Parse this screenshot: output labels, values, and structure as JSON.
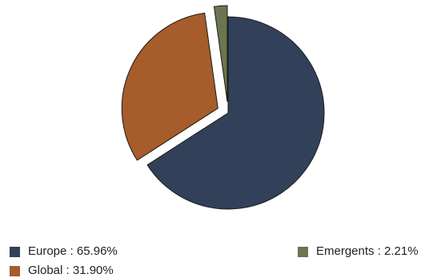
{
  "chart_data": {
    "type": "pie",
    "slices": [
      {
        "label": "Europe",
        "value": 65.96,
        "color": "#334059",
        "exploded": false
      },
      {
        "label": "Global",
        "value": 31.9,
        "color": "#a65c2b",
        "exploded": true
      },
      {
        "label": "Emergents",
        "value": 2.21,
        "color": "#6b7550",
        "exploded": true
      }
    ],
    "legend": {
      "placement": "bottom",
      "items": [
        "Europe : 65.96%",
        "Global : 31.90%",
        "Emergents : 2.21%"
      ]
    },
    "start_angle": "12 o'clock",
    "direction": "clockwise"
  }
}
